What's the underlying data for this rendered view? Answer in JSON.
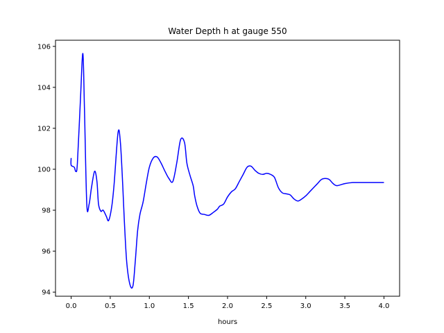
{
  "chart_data": {
    "type": "line",
    "title": "Water Depth h at gauge 550",
    "xlabel": "hours",
    "ylabel": "",
    "xlim": [
      -0.2,
      4.2
    ],
    "ylim": [
      93.8,
      106.3
    ],
    "xticks": [
      0.0,
      0.5,
      1.0,
      1.5,
      2.0,
      2.5,
      3.0,
      3.5,
      4.0
    ],
    "xtick_labels": [
      "0.0",
      "0.5",
      "1.0",
      "1.5",
      "2.0",
      "2.5",
      "3.0",
      "3.5",
      "4.0"
    ],
    "yticks": [
      94,
      96,
      98,
      100,
      102,
      104,
      106
    ],
    "ytick_labels": [
      "94",
      "96",
      "98",
      "100",
      "102",
      "104",
      "106"
    ],
    "grid": false,
    "series": [
      {
        "color": "#0000ff",
        "x": [
          0.0,
          0.0,
          0.04,
          0.06,
          0.08,
          0.12,
          0.15,
          0.17,
          0.2,
          0.23,
          0.26,
          0.3,
          0.33,
          0.35,
          0.38,
          0.41,
          0.45,
          0.48,
          0.52,
          0.55,
          0.6,
          0.63,
          0.66,
          0.68,
          0.71,
          0.75,
          0.79,
          0.82,
          0.85,
          0.88,
          0.92,
          0.96,
          1.0,
          1.05,
          1.1,
          1.15,
          1.2,
          1.25,
          1.3,
          1.35,
          1.4,
          1.45,
          1.48,
          1.52,
          1.56,
          1.58,
          1.61,
          1.65,
          1.7,
          1.76,
          1.82,
          1.87,
          1.9,
          1.95,
          2.0,
          2.05,
          2.1,
          2.15,
          2.2,
          2.25,
          2.3,
          2.35,
          2.4,
          2.45,
          2.5,
          2.55,
          2.6,
          2.65,
          2.7,
          2.75,
          2.8,
          2.85,
          2.9,
          2.95,
          3.0,
          3.05,
          3.1,
          3.15,
          3.2,
          3.25,
          3.3,
          3.35,
          3.4,
          3.5,
          3.6,
          3.7,
          3.75,
          3.8,
          3.85,
          3.9,
          3.95,
          4.0
        ],
        "values": [
          100.55,
          100.2,
          100.1,
          99.9,
          100.3,
          103.5,
          105.65,
          103.0,
          98.3,
          98.3,
          99.1,
          99.9,
          99.4,
          98.3,
          97.95,
          98.0,
          97.7,
          97.5,
          98.2,
          99.3,
          101.8,
          101.3,
          99.2,
          97.5,
          95.5,
          94.4,
          94.3,
          95.5,
          97.0,
          97.8,
          98.4,
          99.3,
          100.1,
          100.55,
          100.6,
          100.3,
          99.9,
          99.55,
          99.4,
          100.3,
          101.45,
          101.3,
          100.3,
          99.7,
          99.2,
          98.7,
          98.2,
          97.85,
          97.8,
          97.75,
          97.9,
          98.05,
          98.2,
          98.3,
          98.65,
          98.9,
          99.05,
          99.4,
          99.75,
          100.1,
          100.15,
          99.95,
          99.8,
          99.75,
          99.8,
          99.75,
          99.6,
          99.1,
          98.85,
          98.8,
          98.75,
          98.55,
          98.45,
          98.55,
          98.7,
          98.9,
          99.1,
          99.3,
          99.5,
          99.55,
          99.5,
          99.3,
          99.2,
          99.3,
          99.35,
          99.35,
          99.35,
          99.35,
          99.35,
          99.35,
          99.35,
          99.35
        ]
      }
    ]
  }
}
